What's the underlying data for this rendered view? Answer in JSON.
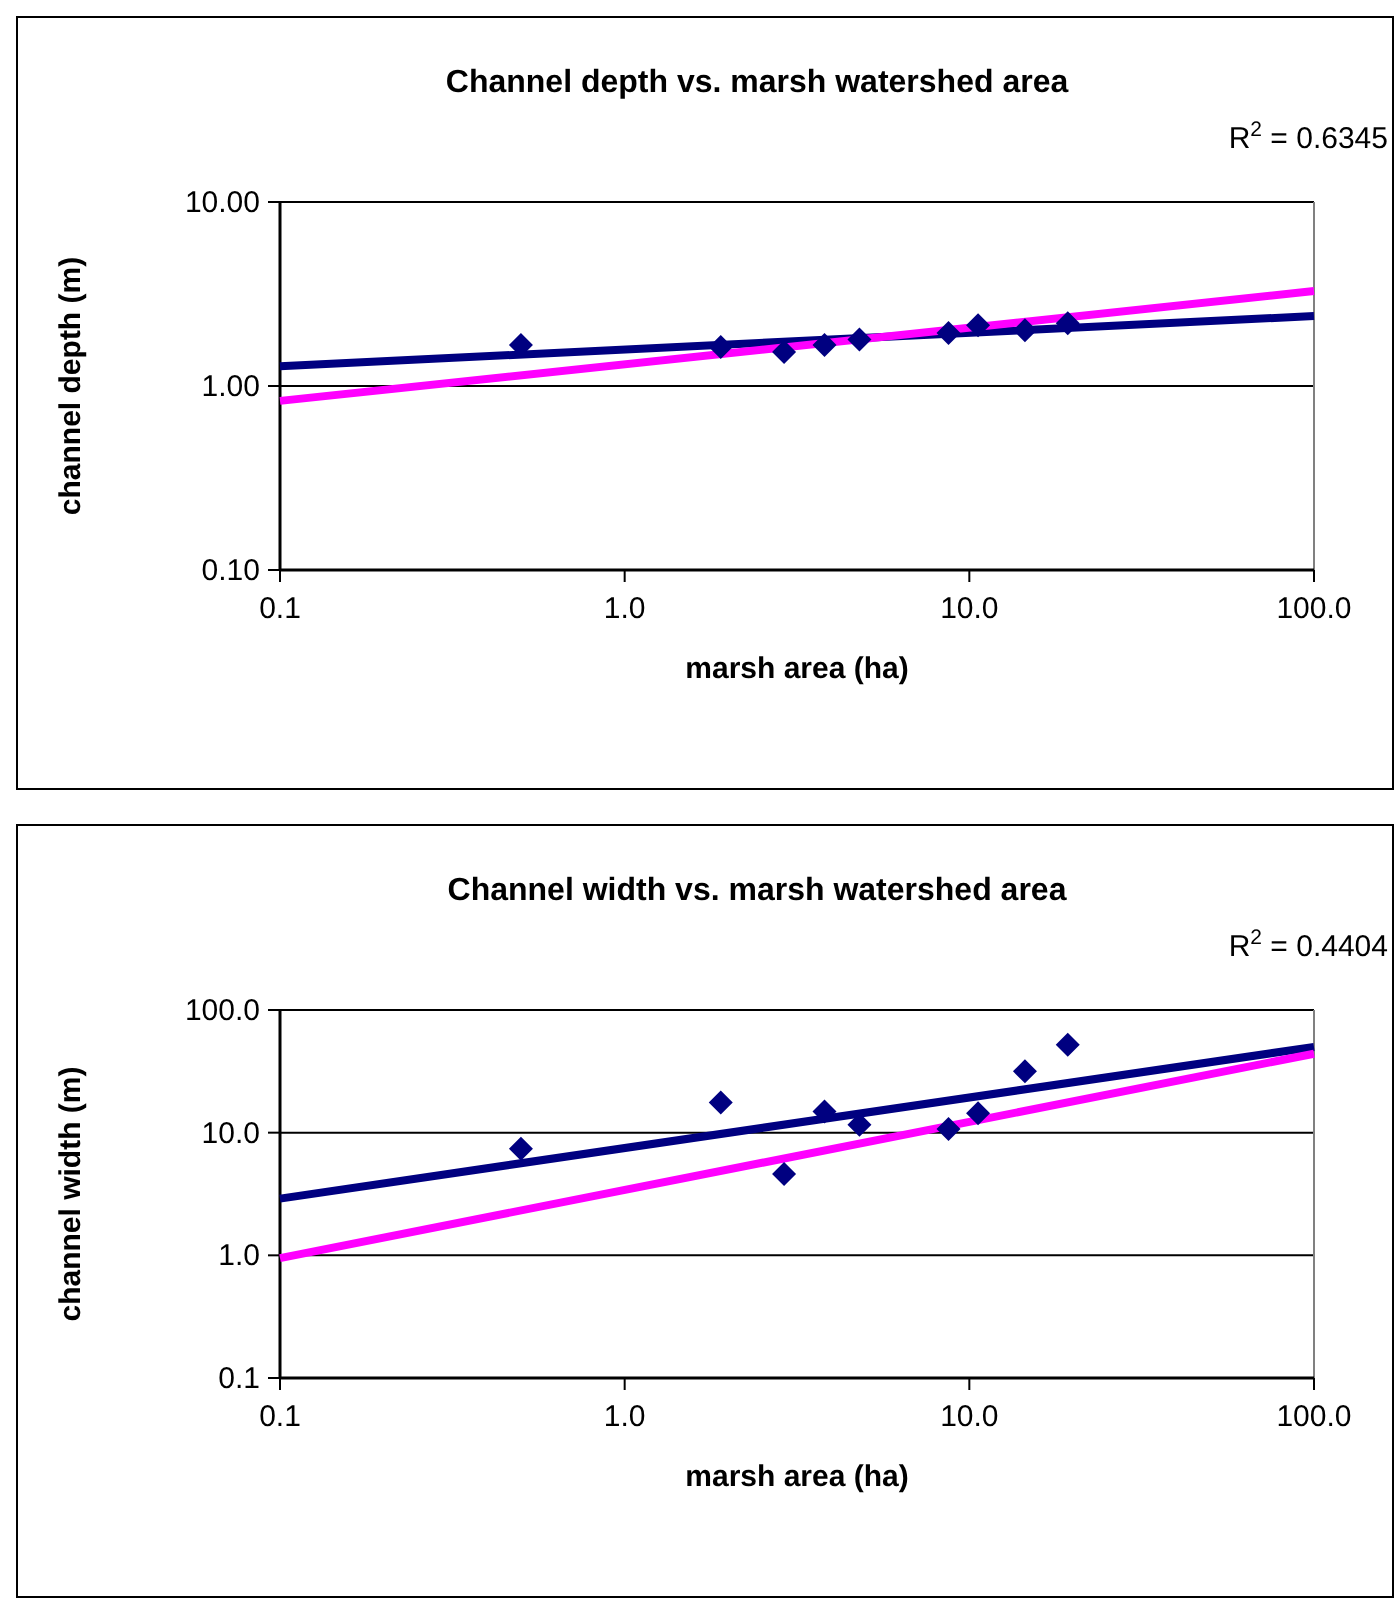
{
  "chart_data": [
    {
      "type": "scatter",
      "title": "Channel depth vs. marsh watershed area",
      "xlabel": "marsh area (ha)",
      "ylabel": "channel depth (m)",
      "annotations": [
        "R$^{2}$ = 0.6345"
      ],
      "log": "xy",
      "grid": "y",
      "xlim": [
        0.1,
        100
      ],
      "xticks": [
        0.1,
        {
          "value": 1,
          "label": "1.0"
        },
        {
          "value": 10,
          "label": "10.0"
        },
        {
          "value": 100,
          "label": "100.0"
        }
      ],
      "ylim": [
        0.1,
        10
      ],
      "yticks": [
        {
          "value": 0.1,
          "label": "0.10"
        },
        {
          "value": 1,
          "label": "1.00"
        },
        {
          "value": 10,
          "label": "10.00"
        }
      ],
      "series": [
        {
          "color": "#000080",
          "marker": "diamond",
          "x": [
            0.5,
            1.9,
            2.9,
            3.8,
            4.8,
            8.7,
            10.6,
            14.5,
            19.3
          ],
          "values": [
            1.67,
            1.63,
            1.53,
            1.67,
            1.79,
            1.94,
            2.14,
            2.01,
            2.19
          ]
        },
        {
          "type": "line",
          "color": "#000080",
          "marker": "none",
          "x": [
            0.1,
            100
          ],
          "values": [
            1.28,
            2.4
          ]
        },
        {
          "type": "line",
          "color": "#ff00ff",
          "marker": "none",
          "x": [
            0.1,
            100
          ],
          "values": [
            0.83,
            3.28
          ]
        }
      ]
    },
    {
      "type": "scatter",
      "title": "Channel width vs. marsh watershed area",
      "xlabel": "marsh area (ha)",
      "ylabel": "channel width (m)",
      "annotations": [
        "R$^{2}$ = 0.4404"
      ],
      "log": "xy",
      "grid": "y",
      "xlim": [
        0.1,
        100
      ],
      "xticks": [
        0.1,
        {
          "value": 1,
          "label": "1.0"
        },
        {
          "value": 10,
          "label": "10.0"
        },
        {
          "value": 100,
          "label": "100.0"
        }
      ],
      "ylim": [
        0.1,
        100
      ],
      "yticks": [
        0.1,
        {
          "value": 1,
          "label": "1.0"
        },
        {
          "value": 10,
          "label": "10.0"
        },
        {
          "value": 100,
          "label": "100.0"
        }
      ],
      "series": [
        {
          "color": "#000080",
          "marker": "diamond",
          "x": [
            0.5,
            1.9,
            2.9,
            3.8,
            4.8,
            8.7,
            10.6,
            14.5,
            19.3
          ],
          "values": [
            7.4,
            17.6,
            4.6,
            14.9,
            11.6,
            10.7,
            14.4,
            31.6,
            52
          ]
        },
        {
          "type": "line",
          "color": "#000080",
          "marker": "none",
          "x": [
            0.1,
            100
          ],
          "values": [
            2.9,
            50
          ]
        },
        {
          "type": "line",
          "color": "#ff00ff",
          "marker": "none",
          "x": [
            0.1,
            100
          ],
          "values": [
            0.95,
            44
          ]
        }
      ]
    }
  ]
}
